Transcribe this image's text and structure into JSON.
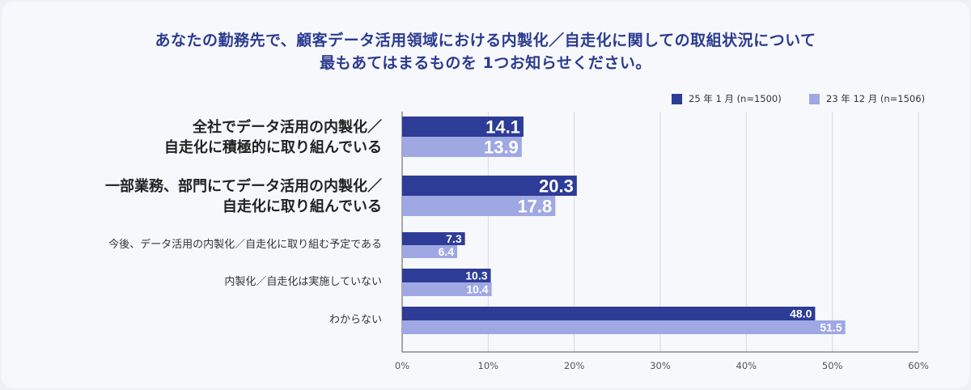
{
  "title": {
    "line1": "あなたの勤務先で、顧客データ活用領域における内製化／自走化に関しての取組状況について",
    "line2": "最もあてはまるものを 1つお知らせください。"
  },
  "colors": {
    "series1": "#2d3c96",
    "series2": "#9fa8e3",
    "grid": "#d7d9e2",
    "background": "#f7f8fc",
    "title": "#2b3b8f"
  },
  "chart_data": {
    "type": "bar",
    "orientation": "horizontal",
    "categories": [
      "全社でデータ活用の内製化／\n自走化に積極的に取り組んでいる",
      "一部業務、部門にてデータ活用の内製化／\n自走化に取り組んでいる",
      "今後、データ活用の内製化／自走化に取り組む予定である",
      "内製化／自走化は実施していない",
      "わからない"
    ],
    "series": [
      {
        "name": "25 年 1 月 (n=1500)",
        "values": [
          14.1,
          20.3,
          7.3,
          10.3,
          48.0
        ],
        "labels": [
          "14.1",
          "20.3",
          "7.3",
          "10.3",
          "48.0"
        ]
      },
      {
        "name": "23 年 12 月 (n=1506)",
        "values": [
          13.9,
          17.8,
          6.4,
          10.4,
          51.5
        ],
        "labels": [
          "13.9",
          "17.8",
          "6.4",
          "10.4",
          "51.5"
        ]
      }
    ],
    "xlim": [
      0,
      60
    ],
    "xticks": [
      "0%",
      "10%",
      "20%",
      "30%",
      "40%",
      "50%",
      "60%"
    ],
    "grid": true,
    "legend_position": "top-right"
  }
}
